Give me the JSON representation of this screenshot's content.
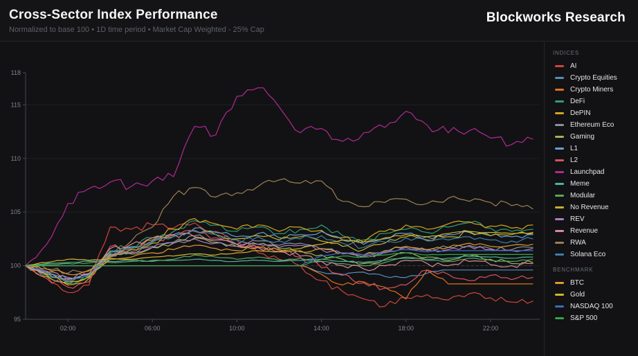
{
  "header": {
    "title": "Cross-Sector Index Performance",
    "subtitle": "Normalized to base 100 • 1D time period • Market Cap Weighted - 25% Cap",
    "brand": "Blockworks Research"
  },
  "sidebar": {
    "indices_label": "INDICES",
    "benchmark_label": "BENCHMARK"
  },
  "colors": {
    "background": "#121214",
    "divider": "#26262a",
    "grid": "#202024",
    "axis": "#434a54",
    "axis_text": "#7d848d",
    "baseline_dash": "#5a5f66"
  },
  "chart_data": {
    "type": "line",
    "title": "Cross-Sector Index Performance",
    "subtitle": "Normalized to base 100 • 1D time period • Market Cap Weighted - 25% Cap",
    "xlabel": "",
    "ylabel": "",
    "x_unit": "hours (1D)",
    "x_hours": [
      0,
      1,
      2,
      3,
      4,
      5,
      6,
      7,
      8,
      9,
      10,
      11,
      12,
      13,
      14,
      15,
      16,
      17,
      18,
      19,
      20,
      21,
      22,
      23,
      24
    ],
    "x_tick_hours": [
      2,
      6,
      10,
      14,
      18,
      22
    ],
    "x_tick_labels": [
      "02:00",
      "06:00",
      "10:00",
      "14:00",
      "18:00",
      "22:00"
    ],
    "y_ticks": [
      95,
      100,
      105,
      110,
      115,
      118
    ],
    "ylim": [
      95,
      118
    ],
    "baseline": 100,
    "grid": "horizontal",
    "legend_position": "right",
    "groups": [
      {
        "key": "indices",
        "label": "INDICES"
      },
      {
        "key": "benchmark",
        "label": "BENCHMARK"
      }
    ],
    "series": [
      {
        "name": "AI",
        "group": "indices",
        "color": "#d0453e",
        "volatility": 0.32,
        "values": [
          100,
          99.0,
          97.5,
          98.2,
          103.6,
          103.4,
          103.8,
          103.5,
          104.0,
          103.2,
          102.4,
          101.2,
          100.6,
          100.0,
          98.6,
          97.6,
          96.9,
          96.2,
          97.0,
          97.3,
          96.8,
          97.4,
          97.0,
          96.6,
          96.7
        ]
      },
      {
        "name": "Crypto Equities",
        "group": "indices",
        "color": "#5b8db8",
        "volatility": 0.12,
        "values": [
          100,
          100,
          100,
          100,
          100,
          100,
          100,
          100,
          100,
          100,
          100,
          100,
          100,
          100,
          99.4,
          99.1,
          99.4,
          99.0,
          98.9,
          99.3,
          99.6,
          99.6,
          99.6,
          99.6,
          99.6
        ]
      },
      {
        "name": "Crypto Miners",
        "group": "indices",
        "color": "#e2711d",
        "volatility": 0.25,
        "values": [
          100,
          100,
          100,
          100,
          100,
          100,
          100,
          100,
          100,
          100,
          100,
          100,
          100,
          100,
          99.2,
          98.2,
          98.5,
          98.0,
          96.9,
          99.6,
          98.3,
          98.3,
          98.3,
          98.3,
          98.3
        ]
      },
      {
        "name": "DeFi",
        "group": "indices",
        "color": "#2f9e77",
        "volatility": 0.28,
        "values": [
          100,
          99.2,
          98.4,
          99.0,
          101.4,
          101.8,
          102.6,
          103.2,
          104.2,
          103.8,
          103.2,
          103.6,
          103.0,
          103.4,
          103.8,
          102.8,
          102.4,
          103.0,
          103.4,
          103.1,
          103.6,
          104.0,
          103.5,
          103.2,
          103.4
        ]
      },
      {
        "name": "DePIN",
        "group": "indices",
        "color": "#d6a51e",
        "volatility": 0.28,
        "values": [
          100,
          99.0,
          98.2,
          98.8,
          101.2,
          101.6,
          102.4,
          103.4,
          104.4,
          103.9,
          103.4,
          103.8,
          103.2,
          103.6,
          103.3,
          102.6,
          102.2,
          103.2,
          103.8,
          103.4,
          103.9,
          104.1,
          103.7,
          103.5,
          103.8
        ]
      },
      {
        "name": "Ethereum Eco",
        "group": "indices",
        "color": "#8a94a0",
        "volatility": 0.2,
        "values": [
          100,
          99.3,
          98.6,
          99.1,
          101.0,
          101.3,
          101.8,
          102.2,
          102.8,
          102.4,
          102.0,
          102.3,
          101.9,
          102.1,
          101.6,
          101.2,
          100.9,
          101.3,
          101.8,
          101.5,
          101.7,
          101.9,
          101.6,
          101.5,
          101.7
        ]
      },
      {
        "name": "Gaming",
        "group": "indices",
        "color": "#9ab857",
        "volatility": 0.2,
        "values": [
          100,
          99.1,
          98.3,
          98.9,
          100.8,
          101.1,
          101.7,
          102.1,
          102.6,
          102.2,
          101.8,
          102.0,
          101.6,
          101.4,
          101.0,
          100.6,
          100.2,
          100.6,
          101.2,
          100.8,
          100.5,
          100.9,
          100.6,
          100.2,
          100.3
        ]
      },
      {
        "name": "L1",
        "group": "indices",
        "color": "#69a2d2",
        "volatility": 0.25,
        "values": [
          100,
          99.4,
          98.7,
          99.2,
          101.3,
          101.7,
          102.3,
          102.9,
          103.5,
          103.1,
          102.7,
          103.0,
          102.6,
          102.9,
          103.2,
          102.4,
          102.0,
          102.5,
          103.0,
          102.7,
          102.9,
          103.2,
          102.8,
          102.7,
          102.9
        ]
      },
      {
        "name": "L2",
        "group": "indices",
        "color": "#d8535f",
        "volatility": 0.3,
        "values": [
          100,
          98.8,
          98.0,
          98.5,
          101.8,
          101.5,
          102.2,
          102.8,
          103.2,
          102.6,
          102.0,
          101.8,
          101.4,
          100.8,
          99.8,
          99.2,
          98.4,
          97.9,
          98.2,
          99.6,
          99.2,
          98.6,
          99.1,
          98.7,
          98.9
        ]
      },
      {
        "name": "Launchpad",
        "group": "indices",
        "color": "#b02a94",
        "volatility": 0.45,
        "values": [
          100,
          102.0,
          105.8,
          107.2,
          107.8,
          107.4,
          107.9,
          108.3,
          113.0,
          112.2,
          115.8,
          116.6,
          114.8,
          112.4,
          112.8,
          111.6,
          112.4,
          112.9,
          114.4,
          113.1,
          112.4,
          112.6,
          111.9,
          111.3,
          111.8
        ]
      },
      {
        "name": "Meme",
        "group": "indices",
        "color": "#4fb3a3",
        "volatility": 0.06,
        "values": [
          100,
          100.2,
          100.3,
          100.4,
          100.4,
          100.5,
          100.4,
          100.5,
          100.6,
          100.5,
          100.4,
          100.5,
          100.4,
          100.5,
          100.6,
          100.4,
          100.3,
          100.5,
          100.7,
          100.6,
          100.7,
          100.9,
          100.8,
          100.7,
          100.8
        ]
      },
      {
        "name": "Modular",
        "group": "indices",
        "color": "#5aa85c",
        "volatility": 0.08,
        "values": [
          100,
          100.1,
          100.2,
          100.25,
          100.3,
          100.4,
          100.5,
          100.6,
          101.0,
          100.8,
          100.6,
          100.8,
          100.5,
          100.7,
          100.4,
          100.2,
          100.0,
          100.3,
          100.8,
          100.5,
          100.4,
          100.7,
          100.5,
          100.4,
          100.6
        ]
      },
      {
        "name": "No Revenue",
        "group": "indices",
        "color": "#c3b32b",
        "volatility": 0.25,
        "values": [
          100,
          99.2,
          98.5,
          99.0,
          101.1,
          101.5,
          102.1,
          102.7,
          103.3,
          102.9,
          102.5,
          102.8,
          102.4,
          102.7,
          102.3,
          101.8,
          101.5,
          102.1,
          102.7,
          102.4,
          102.7,
          103.1,
          102.8,
          102.9,
          103.0
        ]
      },
      {
        "name": "REV",
        "group": "indices",
        "color": "#b07cc6",
        "volatility": 0.2,
        "values": [
          100,
          99.5,
          98.9,
          99.3,
          100.9,
          101.2,
          101.7,
          102.1,
          102.5,
          102.1,
          101.8,
          102.0,
          101.7,
          101.9,
          101.5,
          101.1,
          100.8,
          101.2,
          101.7,
          101.4,
          101.5,
          101.8,
          101.5,
          101.4,
          101.6
        ]
      },
      {
        "name": "Revenue",
        "group": "indices",
        "color": "#d98b98",
        "volatility": 0.25,
        "values": [
          100,
          99.4,
          98.8,
          99.2,
          101.6,
          102.0,
          102.6,
          102.9,
          102.7,
          102.4,
          102.0,
          101.7,
          101.3,
          100.9,
          100.4,
          100.0,
          99.7,
          100.0,
          100.5,
          100.2,
          100.0,
          100.4,
          100.1,
          100.0,
          100.2
        ]
      },
      {
        "name": "RWA",
        "group": "indices",
        "color": "#a08055",
        "volatility": 0.3,
        "values": [
          100,
          99.7,
          99.3,
          99.6,
          100.8,
          102.3,
          103.6,
          106.5,
          107.3,
          106.4,
          106.8,
          107.4,
          108.0,
          107.7,
          107.9,
          106.0,
          105.5,
          105.9,
          106.2,
          105.8,
          106.3,
          106.0,
          105.9,
          105.6,
          105.3
        ]
      },
      {
        "name": "Solana Eco",
        "group": "indices",
        "color": "#3e7fae",
        "volatility": 0.25,
        "values": [
          100,
          99.3,
          98.5,
          99.1,
          101.2,
          101.6,
          102.2,
          102.7,
          103.3,
          102.9,
          102.4,
          102.7,
          102.3,
          102.5,
          102.8,
          102.1,
          101.7,
          102.2,
          102.6,
          102.3,
          102.4,
          102.7,
          102.4,
          102.3,
          102.5
        ]
      },
      {
        "name": "BTC",
        "group": "benchmark",
        "color": "#df9b30",
        "volatility": 0.15,
        "values": [
          100,
          99.7,
          99.2,
          99.5,
          100.6,
          100.8,
          101.2,
          101.5,
          101.9,
          101.6,
          101.4,
          101.7,
          101.5,
          101.3,
          101.6,
          101.2,
          101.0,
          101.4,
          101.8,
          101.5,
          101.7,
          102.1,
          101.8,
          101.9,
          102.0
        ]
      },
      {
        "name": "Gold",
        "group": "benchmark",
        "color": "#d3b82a",
        "volatility": 0.07,
        "values": [
          100,
          100.3,
          100.6,
          100.5,
          100.7,
          100.6,
          100.8,
          100.9,
          101.1,
          101.0,
          101.2,
          101.4,
          101.3,
          101.6,
          102.0,
          102.4,
          102.2,
          102.6,
          102.9,
          102.7,
          103.0,
          103.2,
          103.1,
          103.0,
          103.1
        ]
      },
      {
        "name": "NASDAQ 100",
        "group": "benchmark",
        "color": "#3a6fbf",
        "volatility": 0.06,
        "values": [
          100,
          100,
          100,
          100,
          100,
          100,
          100,
          100,
          100,
          100,
          100,
          100,
          100,
          100,
          100.9,
          101.2,
          101.0,
          101.3,
          101.5,
          101.3,
          101.4,
          101.4,
          101.4,
          101.4,
          101.4
        ]
      },
      {
        "name": "S&P 500",
        "group": "benchmark",
        "color": "#33a64c",
        "volatility": 0.05,
        "values": [
          100,
          100,
          100,
          100,
          100,
          100,
          100,
          100,
          100,
          100,
          100,
          100,
          100,
          100,
          100.6,
          100.9,
          100.8,
          101.0,
          101.2,
          101.0,
          101.05,
          101.05,
          101.05,
          101.05,
          101.05
        ]
      }
    ]
  }
}
